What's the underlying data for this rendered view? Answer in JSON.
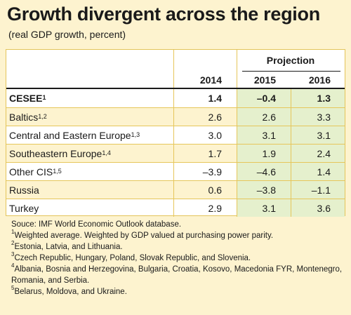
{
  "title": "Growth divergent across the region",
  "subtitle": "(real GDP growth, percent)",
  "table": {
    "projection_label": "Projection",
    "years": [
      "2014",
      "2015",
      "2016"
    ],
    "rows": [
      {
        "label": "CESEE",
        "sup": "1",
        "values": [
          "1.4",
          "–0.4",
          "1.3"
        ],
        "bold": true
      },
      {
        "label": "Baltics",
        "sup": "1,2",
        "values": [
          "2.6",
          "2.6",
          "3.3"
        ]
      },
      {
        "label": "Central and Eastern Europe",
        "sup": "1,3",
        "values": [
          "3.0",
          "3.1",
          "3.1"
        ]
      },
      {
        "label": "Southeastern Europe",
        "sup": "1,4",
        "values": [
          "1.7",
          "1.9",
          "2.4"
        ]
      },
      {
        "label": "Other CIS",
        "sup": "1,5",
        "values": [
          "–3.9",
          "–4.6",
          "1.4"
        ]
      },
      {
        "label": "Russia",
        "sup": "",
        "values": [
          "0.6",
          "–3.8",
          "–1.1"
        ]
      },
      {
        "label": "Turkey",
        "sup": "",
        "values": [
          "2.9",
          "3.1",
          "3.6"
        ]
      }
    ]
  },
  "notes": {
    "source": "Souce: IMF World Economic Outlook database.",
    "items": [
      {
        "num": "1",
        "text": "Weighted average. Weighted by GDP valued at purchasing power parity."
      },
      {
        "num": "2",
        "text": "Estonia, Latvia, and Lithuania."
      },
      {
        "num": "3",
        "text": "Czech Republic, Hungary, Poland, Slovak Republic, and Slovenia."
      },
      {
        "num": "4",
        "text": "Albania, Bosnia and Herzegovina, Bulgaria, Croatia, Kosovo, Macedonia FYR, Montenegro, Romania, and Serbia."
      },
      {
        "num": "5",
        "text": "Belarus, Moldova, and Ukraine."
      }
    ]
  },
  "colors": {
    "background": "#fdf3cf",
    "projection_shade": "#e5f0cd",
    "rule": "#e6c65a"
  }
}
